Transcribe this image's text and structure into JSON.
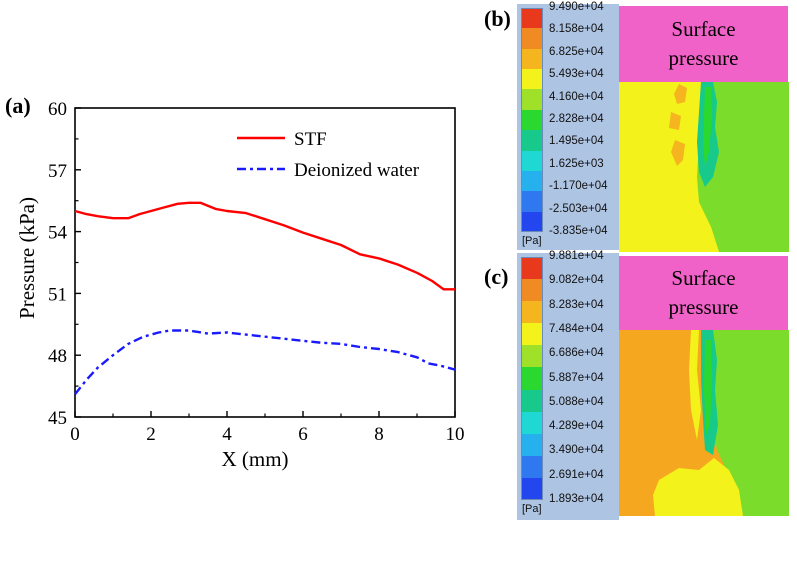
{
  "panels": {
    "a": "(a)",
    "b": "(b)",
    "c": "(c)"
  },
  "chart_data": [
    {
      "type": "line",
      "title": "",
      "xlabel": "X (mm)",
      "ylabel": "Pressure (kPa)",
      "xlim": [
        0,
        10
      ],
      "ylim": [
        45,
        60
      ],
      "xticks": [
        "0",
        "2",
        "4",
        "6",
        "8",
        "10"
      ],
      "yticks": [
        "45",
        "48",
        "51",
        "54",
        "57",
        "60"
      ],
      "legend_position": "top-right",
      "series": [
        {
          "name": "STF",
          "color": "#ff0000",
          "style": "solid",
          "x": [
            0,
            0.3,
            0.6,
            1.0,
            1.4,
            1.7,
            2.0,
            2.3,
            2.7,
            3.0,
            3.3,
            3.7,
            4.0,
            4.5,
            5.0,
            5.5,
            6.0,
            6.5,
            7.0,
            7.5,
            8.0,
            8.5,
            9.0,
            9.4,
            9.7,
            10.0
          ],
          "y": [
            55.0,
            54.85,
            54.75,
            54.65,
            54.65,
            54.85,
            55.0,
            55.15,
            55.35,
            55.4,
            55.4,
            55.1,
            55.0,
            54.9,
            54.6,
            54.3,
            53.95,
            53.65,
            53.35,
            52.9,
            52.7,
            52.4,
            52.0,
            51.6,
            51.2,
            51.2
          ]
        },
        {
          "name": "Deionized water",
          "color": "#1a1aff",
          "style": "dashdot",
          "x": [
            0,
            0.3,
            0.6,
            1.0,
            1.4,
            1.8,
            2.2,
            2.5,
            3.0,
            3.5,
            4.0,
            4.5,
            5.0,
            5.5,
            6.0,
            6.5,
            7.0,
            7.5,
            8.0,
            8.5,
            9.0,
            9.3,
            9.6,
            10.0
          ],
          "y": [
            46.1,
            46.8,
            47.4,
            48.0,
            48.55,
            48.9,
            49.1,
            49.2,
            49.2,
            49.05,
            49.1,
            49.0,
            48.9,
            48.8,
            48.7,
            48.6,
            48.55,
            48.4,
            48.3,
            48.15,
            47.9,
            47.6,
            47.5,
            47.3
          ]
        }
      ]
    },
    {
      "type": "heatmap",
      "title": "Surface pressure",
      "legend_unit": "[Pa]",
      "legend_values": [
        "9.490e+04",
        "8.158e+04",
        "6.825e+04",
        "5.493e+04",
        "4.160e+04",
        "2.828e+04",
        "1.495e+04",
        "1.625e+03",
        "-1.170e+04",
        "-2.503e+04",
        "-3.835e+04"
      ],
      "legend_colors": [
        "#e8391d",
        "#f08a22",
        "#f5b51f",
        "#f4f21b",
        "#9fe028",
        "#2bd82f",
        "#17c98b",
        "#1fd7d3",
        "#27b0ee",
        "#2f78f0",
        "#2446ef"
      ],
      "regions": {
        "left": "#f4f21b",
        "spots": "#f5b51f",
        "band": "#17c98b",
        "right": "#7bdc2c"
      }
    },
    {
      "type": "heatmap",
      "title": "Surface pressure",
      "legend_unit": "[Pa]",
      "legend_values": [
        "9.881e+04",
        "9.082e+04",
        "8.283e+04",
        "7.484e+04",
        "6.686e+04",
        "5.887e+04",
        "5.088e+04",
        "4.289e+04",
        "3.490e+04",
        "2.691e+04",
        "1.893e+04"
      ],
      "legend_colors": [
        "#e8391d",
        "#f08a22",
        "#f5b51f",
        "#f4f21b",
        "#9fe028",
        "#2bd82f",
        "#17c98b",
        "#1fd7d3",
        "#27b0ee",
        "#2f78f0",
        "#2446ef"
      ],
      "regions": {
        "left": "#f5a81f",
        "bottom": "#f4f21b",
        "band": "#17c98b",
        "right": "#7bdc2c"
      }
    }
  ]
}
